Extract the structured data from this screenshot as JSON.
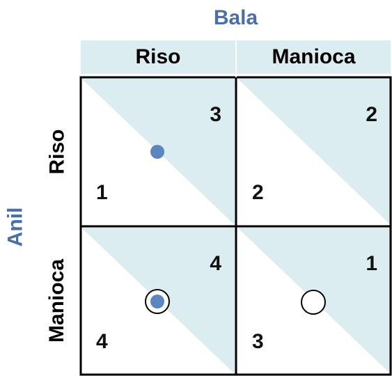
{
  "players": {
    "column": {
      "name": "Bala",
      "color": "#4a6fa5"
    },
    "row": {
      "name": "Anil",
      "color": "#4a6fa5"
    }
  },
  "strategies": {
    "column": [
      "Riso",
      "Manioca"
    ],
    "row": [
      "Riso",
      "Manioca"
    ]
  },
  "cells": [
    {
      "row": "Riso",
      "col": "Riso",
      "row_payoff": "1",
      "col_payoff": "3",
      "markers": [
        "filled"
      ]
    },
    {
      "row": "Riso",
      "col": "Manioca",
      "row_payoff": "2",
      "col_payoff": "2",
      "markers": []
    },
    {
      "row": "Manioca",
      "col": "Riso",
      "row_payoff": "4",
      "col_payoff": "4",
      "markers": [
        "filled",
        "ring"
      ]
    },
    {
      "row": "Manioca",
      "col": "Manioca",
      "row_payoff": "3",
      "col_payoff": "1",
      "markers": [
        "ring"
      ]
    }
  ],
  "colors": {
    "header_fill": "#dcedf1",
    "triangle_fill": "#dcedf1",
    "filled_marker": "#5b86bf",
    "ring_marker": "#000000",
    "grid_line": "#000000"
  }
}
